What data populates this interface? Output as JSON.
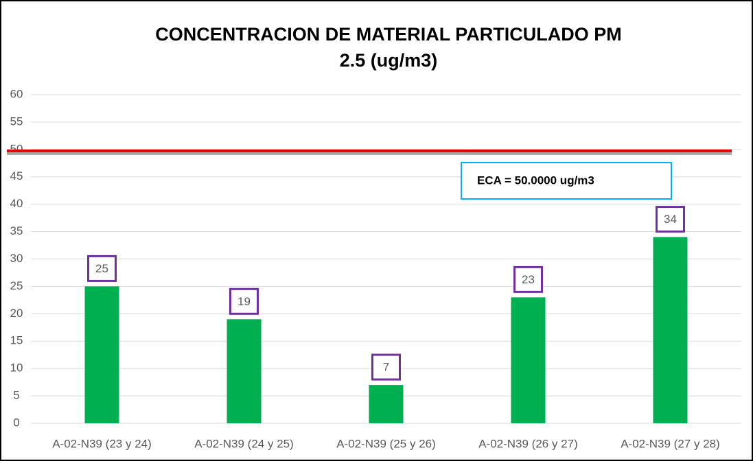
{
  "chart_data": {
    "type": "bar",
    "title": [
      "CONCENTRACION DE MATERIAL PARTICULADO PM",
      "2.5 (ug/m3)"
    ],
    "categories": [
      "A-02-N39 (23 y 24)",
      "A-02-N39 (24 y 25)",
      "A-02-N39 (25 y 26)",
      "A-02-N39 (26 y 27)",
      "A-02-N39 (27 y 28)"
    ],
    "values": [
      25,
      19,
      7,
      23,
      34
    ],
    "color": "#00b050",
    "ylim": [
      0,
      60
    ],
    "yticks": [
      0,
      5,
      10,
      15,
      20,
      25,
      30,
      35,
      40,
      45,
      50,
      55,
      60
    ],
    "grid": true,
    "reference_line": {
      "value": 50,
      "color": "#e00000",
      "label": "ECA = 50.0000 ug/m3"
    }
  }
}
